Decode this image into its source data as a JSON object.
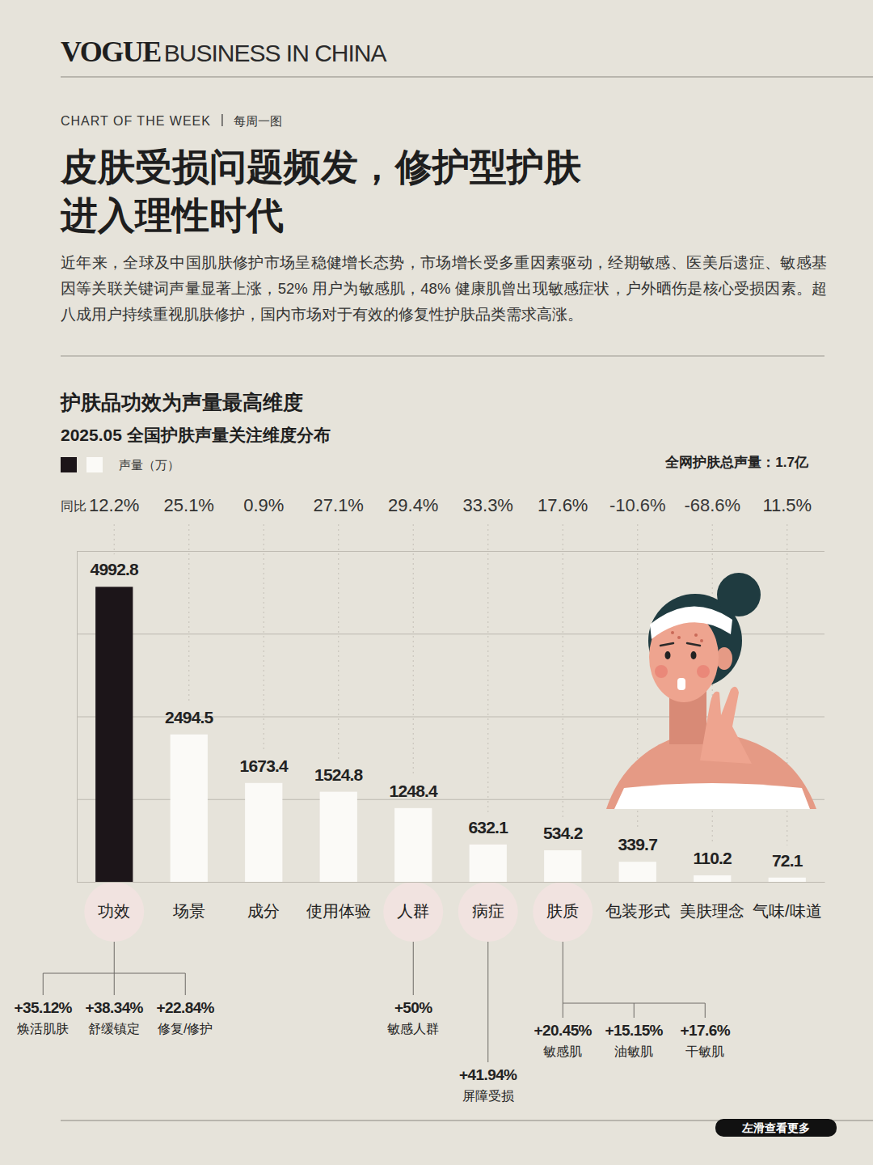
{
  "header": {
    "brand": "VOGUE",
    "section": "BUSINESS IN CHINA",
    "kicker": "CHART OF THE WEEK",
    "kicker_cn": "每周一图",
    "title_lines": [
      "皮肤受损问题频发，修护型护肤",
      "进入理性时代"
    ],
    "intro": "近年来，全球及中国肌肤修护市场呈稳健增长态势，市场增长受多重因素驱动，经期敏感、医美后遗症、敏感基因等关联关键词声量显著上涨，52% 用户为敏感肌，48% 健康肌曾出现敏感症状，户外晒伤是核心受损因素。超八成用户持续重视肌肤修护，国内市场对于有效的修复性护肤品类需求高涨。"
  },
  "chart_data": {
    "type": "bar",
    "title": "护肤品功效为声量最高维度",
    "subtitle": "2025.05 全国护肤声量关注维度分布",
    "legend": "top-left",
    "legend_label": "声量（万）",
    "total_label": "全网护肤总声量：1.7亿",
    "categories": [
      "功效",
      "场景",
      "成分",
      "使用体验",
      "人群",
      "病症",
      "肤质",
      "包装形式",
      "美肤理念",
      "气味/味道"
    ],
    "values": [
      4992.8,
      2494.5,
      1673.4,
      1524.8,
      1248.4,
      632.1,
      534.2,
      339.7,
      110.2,
      72.1
    ],
    "colors": [
      "#1c1519",
      "#fbfaf7",
      "#fbfaf7",
      "#fbfaf7",
      "#fbfaf7",
      "#fbfaf7",
      "#fbfaf7",
      "#fbfaf7",
      "#fbfaf7",
      "#fbfaf7"
    ],
    "data_labels": true,
    "grid": true,
    "tick_labels": "x",
    "ylim": [
      0,
      5600
    ],
    "yticks": [
      0,
      1400,
      2800,
      4200,
      5600
    ],
    "yoy": {
      "label": "同比",
      "values": [
        12.2,
        25.1,
        0.9,
        27.1,
        29.4,
        33.3,
        17.6,
        -10.6,
        -68.6,
        11.5
      ],
      "value_labels": [
        "12.2%",
        "25.1%",
        "0.9%",
        "27.1%",
        "29.4%",
        "33.3%",
        "17.6%",
        "-10.6%",
        "-68.6%",
        "11.5%"
      ]
    },
    "breakdowns": [
      [
        {
          "label": "焕活肌肤",
          "value": 35.12,
          "value_label": "+35.12%"
        },
        {
          "label": "舒缓镇定",
          "value": 38.34,
          "value_label": "+38.34%"
        },
        {
          "label": "修复/修护",
          "value": 22.84,
          "value_label": "+22.84%"
        }
      ],
      [],
      [],
      [],
      [
        {
          "label": "敏感人群",
          "value": 50,
          "value_label": "+50%"
        }
      ],
      [
        {
          "label": "屏障受损",
          "value": 41.94,
          "value_label": "+41.94%"
        }
      ],
      [
        {
          "label": "敏感肌",
          "value": 20.45,
          "value_label": "+20.45%"
        },
        {
          "label": "油敏肌",
          "value": 15.15,
          "value_label": "+15.15%"
        },
        {
          "label": "干敏肌",
          "value": 17.6,
          "value_label": "+17.6%"
        }
      ],
      [],
      [],
      []
    ]
  },
  "footer": {
    "more": "左滑查看更多"
  }
}
